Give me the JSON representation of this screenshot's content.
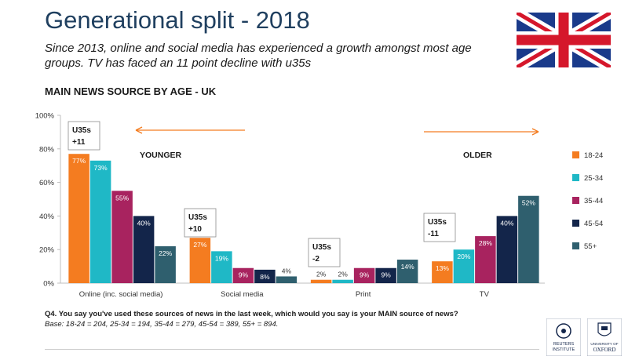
{
  "header": {
    "title": "Generational split - 2018",
    "subtitle": "Since 2013, online and social media has experienced a growth amongst most age groups. TV has faced an 11 point decline with u35s"
  },
  "chart_data": {
    "type": "bar",
    "title": "MAIN NEWS SOURCE BY AGE - UK",
    "categories": [
      "Online (inc. social media)",
      "Social media",
      "Print",
      "TV"
    ],
    "series": [
      {
        "name": "18-24",
        "color": "#f47c20",
        "values": [
          77,
          27,
          2,
          13
        ],
        "labels": [
          "77%",
          "27%",
          "2%",
          "13%"
        ]
      },
      {
        "name": "25-34",
        "color": "#1fb8c6",
        "values": [
          73,
          19,
          2,
          20
        ],
        "labels": [
          "73%",
          "19%",
          "2%",
          "20%"
        ]
      },
      {
        "name": "35-44",
        "color": "#a8235f",
        "values": [
          55,
          9,
          9,
          28
        ],
        "labels": [
          "55%",
          "9%",
          "9%",
          "28%"
        ]
      },
      {
        "name": "45-54",
        "color": "#13254a",
        "values": [
          40,
          8,
          9,
          40
        ],
        "labels": [
          "40%",
          "8%",
          "9%",
          "40%"
        ]
      },
      {
        "name": "55+",
        "color": "#2f5f6e",
        "values": [
          22,
          4,
          14,
          52
        ],
        "labels": [
          "22%",
          "4%",
          "14%",
          "52%"
        ]
      }
    ],
    "ylim": [
      0,
      100
    ],
    "yticks": [
      0,
      20,
      40,
      60,
      80,
      100
    ],
    "ytick_labels": [
      "0%",
      "20%",
      "40%",
      "60%",
      "80%",
      "100%"
    ],
    "legend_position": "right",
    "annotations": [
      {
        "category": 0,
        "line1": "U35s",
        "line2": "+11"
      },
      {
        "category": 1,
        "line1": "U35s",
        "line2": "+10"
      },
      {
        "category": 2,
        "line1": "U35s",
        "line2": "-2"
      },
      {
        "category": 3,
        "line1": "U35s",
        "line2": "-11"
      }
    ],
    "direction_labels": {
      "younger": "YOUNGER",
      "older": "OLDER"
    }
  },
  "footnote": {
    "question": "Q4. You say you've used these sources of news in the last week, which would you say is your MAIN source of news?",
    "base": "Base: 18-24 = 204, 25-34 = 194, 35-44 = 279, 45-54 = 389, 55+ = 894."
  },
  "colors": {
    "title": "#1f3f5f",
    "arrow": "#f47c20",
    "flag_blue": "#1a3a8a",
    "flag_red": "#d5172b"
  },
  "logos": {
    "logo1_lines": [
      "REUTERS",
      "INSTITUTE"
    ],
    "logo2_lines": [
      "UNIVERSITY OF",
      "OXFORD"
    ]
  }
}
